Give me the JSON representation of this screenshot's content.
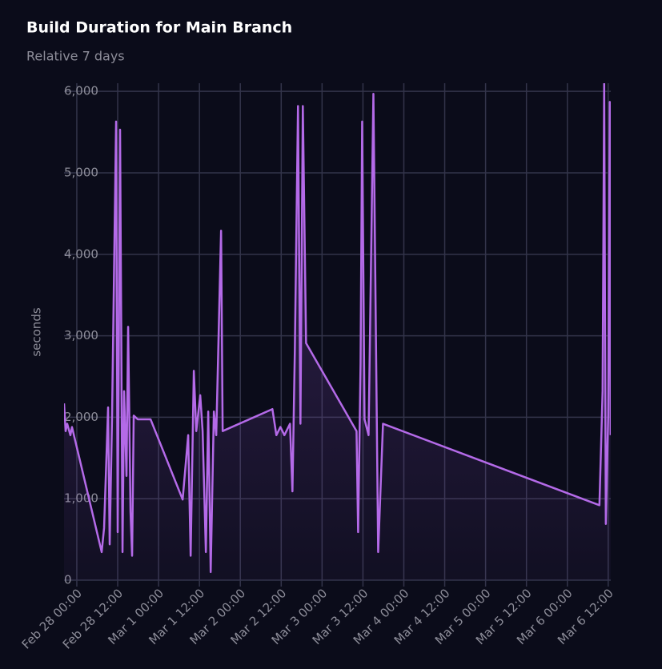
{
  "chart_data": {
    "type": "line",
    "title": "Build Duration for Main Branch",
    "subtitle": "Relative 7 days",
    "y_label": "seconds",
    "x": [
      "Feb 27 20:15",
      "Feb 27 20:43",
      "Feb 27 21:11",
      "Feb 27 22:07",
      "Feb 27 22:35",
      "Feb 28 07:18",
      "Feb 28 08:00",
      "Feb 28 09:11",
      "Feb 28 09:39",
      "Feb 28 10:21",
      "Feb 28 11:32",
      "Feb 28 12:00",
      "Feb 28 12:42",
      "Feb 28 13:25",
      "Feb 28 13:53",
      "Feb 28 14:35",
      "Feb 28 15:04",
      "Feb 28 15:46",
      "Feb 28 16:14",
      "Feb 28 16:42",
      "Feb 28 17:53",
      "Feb 28 21:39",
      "Mar 1 07:04",
      "Mar 1 08:42",
      "Mar 1 09:25",
      "Mar 1 10:21",
      "Mar 1 11:04",
      "Mar 1 12:14",
      "Mar 1 12:56",
      "Mar 1 13:53",
      "Mar 1 14:35",
      "Mar 1 15:18",
      "Mar 1 16:14",
      "Mar 1 16:56",
      "Mar 1 18:21",
      "Mar 1 18:49",
      "Mar 2 09:25",
      "Mar 2 10:35",
      "Mar 2 11:46",
      "Mar 2 12:56",
      "Mar 2 14:35",
      "Mar 2 15:18",
      "Mar 2 16:00",
      "Mar 2 16:56",
      "Mar 2 17:39",
      "Mar 2 18:21",
      "Mar 2 19:18",
      "Mar 3 10:07",
      "Mar 3 10:35",
      "Mar 3 11:18",
      "Mar 3 11:46",
      "Mar 3 12:28",
      "Mar 3 13:39",
      "Mar 3 15:04",
      "Mar 3 16:28",
      "Mar 3 17:53",
      "Mar 6 09:25",
      "Mar 6 10:21",
      "Mar 6 10:49",
      "Mar 6 11:18",
      "Mar 6 12:00",
      "Mar 6 12:28",
      "Mar 6 12:42"
    ],
    "series": [
      {
        "name": "seconds",
        "color": "#b46ae8",
        "values": [
          2170,
          1830,
          1920,
          1780,
          1880,
          345,
          640,
          2120,
          440,
          2020,
          5630,
          590,
          5530,
          345,
          2320,
          1280,
          3110,
          840,
          300,
          2020,
          1975,
          1975,
          990,
          1780,
          300,
          2570,
          1830,
          2270,
          1830,
          345,
          2070,
          100,
          2070,
          1780,
          4290,
          1830,
          2100,
          1780,
          1880,
          1780,
          1920,
          1090,
          2810,
          5820,
          1920,
          5820,
          2910,
          1830,
          590,
          2660,
          5630,
          1975,
          1780,
          5970,
          345,
          1920,
          920,
          2320,
          6100,
          690,
          2020,
          5870,
          1780
        ]
      }
    ],
    "xlim": [
      "Feb 27 20:15",
      "Mar 6 12:45"
    ],
    "xticks": [
      "Feb 28 00:00",
      "Feb 28 12:00",
      "Mar 1 00:00",
      "Mar 1 12:00",
      "Mar 2 00:00",
      "Mar 2 12:00",
      "Mar 3 00:00",
      "Mar 3 12:00",
      "Mar 4 00:00",
      "Mar 4 12:00",
      "Mar 5 00:00",
      "Mar 5 12:00",
      "Mar 6 00:00",
      "Mar 6 12:00"
    ],
    "ylim": [
      0,
      6100
    ],
    "yticks": [
      0,
      {
        "value": 1000,
        "label": "1,000"
      },
      {
        "value": 2000,
        "label": "2,000"
      },
      {
        "value": 3000,
        "label": "3,000"
      },
      {
        "value": 4000,
        "label": "4,000"
      },
      {
        "value": 5000,
        "label": "5,000"
      },
      {
        "value": 6000,
        "label": "6,000"
      }
    ],
    "grid": true
  }
}
